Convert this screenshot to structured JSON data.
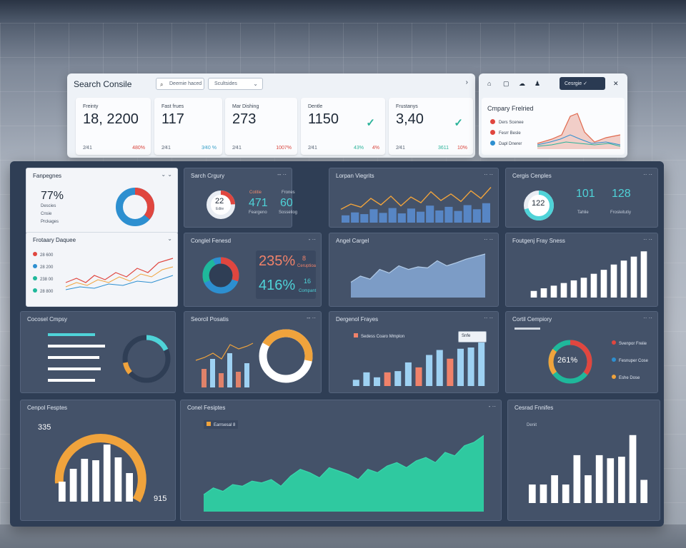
{
  "header": {
    "title": "Search Consile",
    "search_placeholder": "Deemie haced",
    "filter_label": "Scultsides",
    "nav_arrow": "›"
  },
  "kpis": [
    {
      "label": "Freinty",
      "value": "18, 2200",
      "sub": "2⁄41",
      "delta": "480%",
      "delta_color": "#d9453d"
    },
    {
      "label": "Fast frues",
      "value": "117",
      "sub": "2⁄41",
      "delta": "3⁄40 %",
      "delta_color": "#3aa1c9"
    },
    {
      "label": "Mar Dishing",
      "value": "273",
      "sub": "2⁄41",
      "delta": "1007%",
      "delta_color": "#d9453d"
    },
    {
      "label": "Dentle",
      "value": "1150",
      "sub": "2⁄41",
      "delta": "43%",
      "delta2": "4%",
      "delta_color": "#2bb39a",
      "delta2_color": "#d9453d",
      "check": "✓"
    },
    {
      "label": "Frustanys",
      "value": "3,40",
      "sub": "2⁄41",
      "delta": "3611",
      "delta2": "10%",
      "delta_color": "#2bb39a",
      "delta2_color": "#d9453d",
      "check": "✓"
    }
  ],
  "right_panel": {
    "toolbar_icons": [
      "⌂",
      "▢",
      "☁",
      "♟"
    ],
    "action_label": "Cesrgie",
    "close_icon": "✕",
    "card_title": "Cmpary Frelried",
    "legend": [
      {
        "label": "Ders Scenee",
        "color": "#e0463f"
      },
      {
        "label": "Fesrr Besle",
        "color": "#e0463f"
      },
      {
        "label": "Dapl Dnerer",
        "color": "#2d8fd0"
      }
    ]
  },
  "cards": {
    "c1": {
      "title": "Fanpegnes",
      "value": "77%",
      "legend": [
        "Descies",
        "Cnsie",
        "Prckages"
      ],
      "value_color": "#1d2836"
    },
    "c2": {
      "title": "Sarch Crgury",
      "donut_value": "22",
      "donut_sub": "Ediie",
      "stat1_value": "471",
      "stat1_label": "Feargeno",
      "stat1_top": "Cotitie",
      "stat2_value": "60",
      "stat2_label": "Sosseliog",
      "stat2_top": "Frones"
    },
    "c3": {
      "title": "Lorpan Viegrits"
    },
    "c4": {
      "title": "Cergis Cenples",
      "donut_value": "122",
      "stat1_value": "101",
      "stat1_label": "Tahlie",
      "stat2_value": "128",
      "stat2_label": "Frosleitutiy"
    },
    "c5": {
      "title": "Frotaary Daquee",
      "items": [
        "28 600",
        "28 200",
        "238 00",
        "28 800"
      ],
      "item_colors": [
        "#e0463f",
        "#2d8fd0",
        "#1fb89b",
        "#1fb89b"
      ]
    },
    "c6": {
      "title": "Conglel Fenesd",
      "stat1_value": "235%",
      "stat1_badge": "8",
      "stat1_label": "Ceruptioa",
      "stat2_value": "416%",
      "stat2_badge": "16",
      "stat2_label": "Compant"
    },
    "c7": {
      "title": "Angel Cargel"
    },
    "c8": {
      "title": "Foutgenj Fray Sness"
    },
    "c9": {
      "title": "Cocosel Cmpsy"
    },
    "c10": {
      "title": "Seorcil Posatis"
    },
    "c11": {
      "title": "Dergenol Frayes",
      "legend": "Sedess Coaro Mmplon",
      "tooltip": "Snfe"
    },
    "c12": {
      "title": "Cortil Cempiory",
      "donut_value": "261%",
      "legend": [
        "Svenpor Freiie",
        "Fesnuper Cose",
        "Eshe Dose"
      ],
      "legend_colors": [
        "#e0463f",
        "#2d8fd0",
        "#f0a33c"
      ]
    },
    "c13": {
      "title": "Cenpol Fesptes",
      "top_value": "335",
      "bottom_value": "915"
    },
    "c14": {
      "title": "Conel Fesiptes",
      "legend": "Earrsesal 8"
    },
    "c15": {
      "title": "Cesrad Fnnifes",
      "sub": "Denit"
    }
  },
  "chart_data": [
    {
      "type": "line",
      "chart": "c3",
      "values": [
        30,
        42,
        35,
        55,
        40,
        60,
        38,
        58,
        45,
        70,
        50,
        65,
        48,
        72,
        55,
        80
      ]
    },
    {
      "type": "area",
      "chart": "c7",
      "values": [
        30,
        42,
        36,
        55,
        48,
        62,
        55,
        60,
        58,
        72,
        62,
        68,
        75,
        80,
        85
      ]
    },
    {
      "type": "bar",
      "chart": "c8",
      "values": [
        10,
        14,
        18,
        22,
        26,
        30,
        36,
        42,
        50,
        56,
        62,
        70
      ]
    },
    {
      "type": "bar",
      "chart": "c11",
      "values": [
        10,
        22,
        14,
        22,
        24,
        38,
        30,
        50,
        58,
        44,
        60,
        62,
        70
      ]
    },
    {
      "type": "area",
      "chart": "c14",
      "values": [
        20,
        28,
        24,
        32,
        30,
        36,
        34,
        38,
        30,
        42,
        50,
        46,
        40,
        52,
        48,
        44,
        38,
        50,
        46,
        54,
        58,
        52,
        60,
        64,
        58,
        70,
        66,
        78,
        82,
        90
      ]
    },
    {
      "type": "bar",
      "chart": "c15",
      "values": [
        24,
        24,
        36,
        24,
        62,
        36,
        62,
        58,
        60,
        88,
        30
      ]
    },
    {
      "type": "bar",
      "chart": "c13",
      "values": [
        28,
        46,
        60,
        58,
        80,
        62,
        40
      ]
    }
  ]
}
